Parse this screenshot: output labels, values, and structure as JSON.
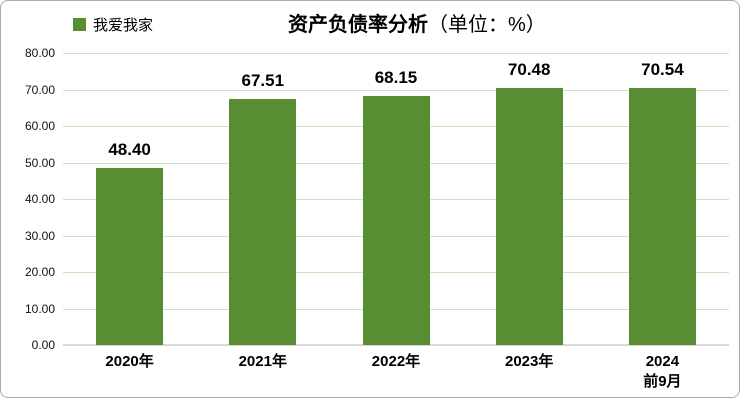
{
  "legend": {
    "label": "我爱我家",
    "marker_color": "#588e31"
  },
  "title": {
    "main": "资产负债率分析",
    "unit": "（单位：%）"
  },
  "chart_data": {
    "type": "bar",
    "title": "资产负债率分析（单位：%）",
    "legend_entries": [
      "我爱我家"
    ],
    "legend_position": "top-left",
    "categories": [
      "2020年",
      "2021年",
      "2022年",
      "2023年",
      "2024\n前9月"
    ],
    "values": [
      48.4,
      67.51,
      68.15,
      70.48,
      70.54
    ],
    "value_labels": [
      "48.40",
      "67.51",
      "68.15",
      "70.48",
      "70.54"
    ],
    "xlabel": "",
    "ylabel": "",
    "ylim": [
      0,
      80
    ],
    "yticks": [
      "0.00",
      "10.00",
      "20.00",
      "30.00",
      "40.00",
      "50.00",
      "60.00",
      "70.00",
      "80.00"
    ],
    "grid": true,
    "bar_color": "#588e31",
    "gridline_color": "#cbe3ba",
    "axis_line_color": "#d9d9d9"
  }
}
